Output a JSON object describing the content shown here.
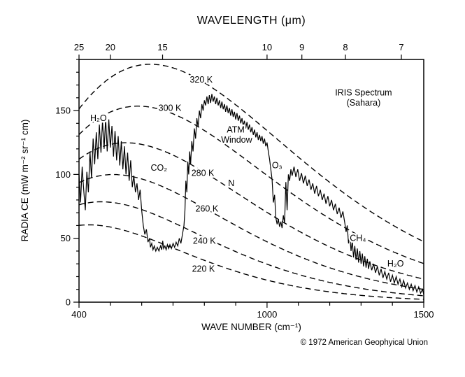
{
  "chart_data": {
    "type": "line",
    "title": "WAVELENGTH (μm)",
    "xlabel": "WAVE NUMBER (cm⁻¹)",
    "ylabel": "RADIA CE (mW m⁻² sr⁻¹ cm)",
    "copyright": "© 1972 American Geophyical Union",
    "grid": false,
    "legend": "none",
    "x_axis": {
      "min": 400,
      "max": 1500,
      "ticks": [
        400,
        1000,
        1500
      ],
      "minor_step": 100
    },
    "y_axis": {
      "min": 0,
      "max": 190,
      "ticks": [
        0,
        50,
        100,
        150
      ],
      "minor_step": 10
    },
    "top_axis": {
      "label": "WAVELENGTH (μm)",
      "ticks": [
        25,
        20,
        15,
        10,
        9,
        8,
        7
      ],
      "mapping": "wavenumber = 10000 / wavelength"
    },
    "blackbody_temperatures_K": [
      320,
      300,
      280,
      260,
      240,
      220
    ],
    "blackbody_formula": "B(nu,T) = 1.191066e-5 * nu^3 / (exp(1.43883*nu/T) - 1)  [mW m-2 sr-1 cm]",
    "annotations": [
      {
        "id": "temp-320",
        "text": "320 K",
        "nu": 790,
        "value": 174
      },
      {
        "id": "temp-300",
        "text": "300 K",
        "nu": 690,
        "value": 152
      },
      {
        "id": "temp-280",
        "text": "280 K",
        "nu": 795,
        "value": 101
      },
      {
        "id": "temp-260",
        "text": "260 K",
        "nu": 808,
        "value": 73
      },
      {
        "id": "temp-240",
        "text": "240 K",
        "nu": 800,
        "value": 48
      },
      {
        "id": "temp-220",
        "text": "220 K",
        "nu": 797,
        "value": 26
      },
      {
        "id": "h2o-left",
        "text": "H₂O",
        "nu": 462,
        "value": 144
      },
      {
        "id": "co2",
        "text": "CO₂",
        "nu": 655,
        "value": 105
      },
      {
        "id": "atm-line1",
        "text": "ATM",
        "nu": 900,
        "value": 135
      },
      {
        "id": "atm-line2",
        "text": "Window",
        "nu": 903,
        "value": 127
      },
      {
        "id": "n-label",
        "text": "N",
        "nu": 886,
        "value": 93
      },
      {
        "id": "o3",
        "text": "O₃",
        "nu": 1032,
        "value": 107
      },
      {
        "id": "ch4",
        "text": "CH₄",
        "nu": 1290,
        "value": 50
      },
      {
        "id": "h2o-right",
        "text": "H₂O",
        "nu": 1410,
        "value": 30
      },
      {
        "id": "iris-line1",
        "text": "IRIS Spectrum",
        "nu": 1308,
        "value": 164
      },
      {
        "id": "iris-line2",
        "text": "(Sahara)",
        "nu": 1308,
        "value": 156
      }
    ],
    "series": [
      {
        "name": "IRIS measured spectrum (Sahara)",
        "style": "solid",
        "points": [
          [
            400,
            100
          ],
          [
            405,
            78
          ],
          [
            410,
            106
          ],
          [
            415,
            88
          ],
          [
            420,
            72
          ],
          [
            425,
            102
          ],
          [
            430,
            86
          ],
          [
            435,
            118
          ],
          [
            440,
            97
          ],
          [
            445,
            128
          ],
          [
            450,
            108
          ],
          [
            455,
            133
          ],
          [
            460,
            112
          ],
          [
            465,
            139
          ],
          [
            470,
            117
          ],
          [
            475,
            142
          ],
          [
            480,
            120
          ],
          [
            485,
            144
          ],
          [
            490,
            118
          ],
          [
            495,
            143
          ],
          [
            500,
            121
          ],
          [
            505,
            138
          ],
          [
            510,
            114
          ],
          [
            515,
            134
          ],
          [
            520,
            111
          ],
          [
            525,
            130
          ],
          [
            530,
            107
          ],
          [
            535,
            126
          ],
          [
            540,
            104
          ],
          [
            545,
            122
          ],
          [
            550,
            100
          ],
          [
            555,
            117
          ],
          [
            560,
            95
          ],
          [
            565,
            111
          ],
          [
            570,
            90
          ],
          [
            575,
            99
          ],
          [
            580,
            86
          ],
          [
            585,
            93
          ],
          [
            590,
            80
          ],
          [
            595,
            88
          ],
          [
            600,
            72
          ],
          [
            605,
            60
          ],
          [
            610,
            53
          ],
          [
            615,
            57
          ],
          [
            620,
            47
          ],
          [
            625,
            50
          ],
          [
            628,
            43
          ],
          [
            632,
            46
          ],
          [
            636,
            41
          ],
          [
            640,
            44
          ],
          [
            645,
            40
          ],
          [
            650,
            43
          ],
          [
            655,
            40
          ],
          [
            660,
            44
          ],
          [
            664,
            41
          ],
          [
            667,
            48
          ],
          [
            670,
            42
          ],
          [
            674,
            44
          ],
          [
            678,
            41
          ],
          [
            682,
            45
          ],
          [
            686,
            42
          ],
          [
            690,
            45
          ],
          [
            695,
            42
          ],
          [
            700,
            46
          ],
          [
            705,
            43
          ],
          [
            710,
            47
          ],
          [
            715,
            44
          ],
          [
            720,
            50
          ],
          [
            725,
            46
          ],
          [
            730,
            53
          ],
          [
            735,
            60
          ],
          [
            738,
            72
          ],
          [
            741,
            95
          ],
          [
            744,
            86
          ],
          [
            747,
            110
          ],
          [
            750,
            100
          ],
          [
            753,
            118
          ],
          [
            756,
            108
          ],
          [
            760,
            126
          ],
          [
            764,
            118
          ],
          [
            768,
            136
          ],
          [
            772,
            128
          ],
          [
            776,
            144
          ],
          [
            780,
            137
          ],
          [
            784,
            150
          ],
          [
            788,
            144
          ],
          [
            792,
            155
          ],
          [
            796,
            150
          ],
          [
            800,
            158
          ],
          [
            804,
            154
          ],
          [
            808,
            161
          ],
          [
            812,
            155
          ],
          [
            816,
            162
          ],
          [
            820,
            156
          ],
          [
            824,
            163
          ],
          [
            828,
            157
          ],
          [
            832,
            161
          ],
          [
            836,
            155
          ],
          [
            840,
            160
          ],
          [
            844,
            154
          ],
          [
            848,
            158
          ],
          [
            852,
            152
          ],
          [
            856,
            157
          ],
          [
            860,
            151
          ],
          [
            864,
            155
          ],
          [
            868,
            149
          ],
          [
            872,
            154
          ],
          [
            876,
            148
          ],
          [
            880,
            152
          ],
          [
            884,
            146
          ],
          [
            888,
            151
          ],
          [
            892,
            145
          ],
          [
            896,
            149
          ],
          [
            900,
            143
          ],
          [
            904,
            148
          ],
          [
            908,
            142
          ],
          [
            912,
            146
          ],
          [
            916,
            140
          ],
          [
            920,
            144
          ],
          [
            924,
            138
          ],
          [
            928,
            142
          ],
          [
            932,
            136
          ],
          [
            936,
            141
          ],
          [
            940,
            135
          ],
          [
            944,
            139
          ],
          [
            948,
            133
          ],
          [
            952,
            137
          ],
          [
            956,
            131
          ],
          [
            960,
            135
          ],
          [
            964,
            129
          ],
          [
            968,
            133
          ],
          [
            972,
            127
          ],
          [
            976,
            131
          ],
          [
            980,
            126
          ],
          [
            984,
            130
          ],
          [
            988,
            124
          ],
          [
            992,
            128
          ],
          [
            996,
            122
          ],
          [
            1000,
            125
          ],
          [
            1004,
            118
          ],
          [
            1008,
            112
          ],
          [
            1012,
            104
          ],
          [
            1016,
            96
          ],
          [
            1020,
            78
          ],
          [
            1024,
            84
          ],
          [
            1028,
            66
          ],
          [
            1032,
            61
          ],
          [
            1036,
            65
          ],
          [
            1040,
            59
          ],
          [
            1044,
            63
          ],
          [
            1048,
            58
          ],
          [
            1052,
            68
          ],
          [
            1056,
            62
          ],
          [
            1060,
            94
          ],
          [
            1064,
            72
          ],
          [
            1068,
            100
          ],
          [
            1072,
            95
          ],
          [
            1076,
            104
          ],
          [
            1080,
            99
          ],
          [
            1086,
            106
          ],
          [
            1092,
            98
          ],
          [
            1098,
            104
          ],
          [
            1104,
            95
          ],
          [
            1110,
            101
          ],
          [
            1116,
            93
          ],
          [
            1122,
            99
          ],
          [
            1128,
            91
          ],
          [
            1134,
            96
          ],
          [
            1140,
            88
          ],
          [
            1146,
            93
          ],
          [
            1152,
            85
          ],
          [
            1158,
            91
          ],
          [
            1164,
            83
          ],
          [
            1170,
            88
          ],
          [
            1176,
            80
          ],
          [
            1182,
            85
          ],
          [
            1188,
            77
          ],
          [
            1194,
            83
          ],
          [
            1200,
            75
          ],
          [
            1206,
            80
          ],
          [
            1212,
            72
          ],
          [
            1218,
            77
          ],
          [
            1224,
            69
          ],
          [
            1230,
            74
          ],
          [
            1236,
            66
          ],
          [
            1242,
            71
          ],
          [
            1248,
            62
          ],
          [
            1252,
            55
          ],
          [
            1256,
            60
          ],
          [
            1260,
            46
          ],
          [
            1264,
            53
          ],
          [
            1268,
            40
          ],
          [
            1272,
            48
          ],
          [
            1276,
            35
          ],
          [
            1280,
            44
          ],
          [
            1284,
            33
          ],
          [
            1288,
            42
          ],
          [
            1292,
            31
          ],
          [
            1296,
            40
          ],
          [
            1300,
            30
          ],
          [
            1304,
            38
          ],
          [
            1308,
            28
          ],
          [
            1312,
            36
          ],
          [
            1316,
            27
          ],
          [
            1320,
            34
          ],
          [
            1324,
            26
          ],
          [
            1328,
            32
          ],
          [
            1334,
            25
          ],
          [
            1340,
            30
          ],
          [
            1346,
            23
          ],
          [
            1352,
            28
          ],
          [
            1358,
            21
          ],
          [
            1364,
            26
          ],
          [
            1370,
            19
          ],
          [
            1376,
            24
          ],
          [
            1382,
            18
          ],
          [
            1388,
            23
          ],
          [
            1394,
            16
          ],
          [
            1400,
            21
          ],
          [
            1406,
            15
          ],
          [
            1412,
            20
          ],
          [
            1418,
            14
          ],
          [
            1424,
            18
          ],
          [
            1430,
            12
          ],
          [
            1436,
            17
          ],
          [
            1442,
            11
          ],
          [
            1448,
            15
          ],
          [
            1454,
            10
          ],
          [
            1460,
            14
          ],
          [
            1466,
            9
          ],
          [
            1472,
            13
          ],
          [
            1478,
            8
          ],
          [
            1484,
            12
          ],
          [
            1490,
            7
          ],
          [
            1496,
            10
          ],
          [
            1500,
            6
          ]
        ]
      }
    ]
  }
}
